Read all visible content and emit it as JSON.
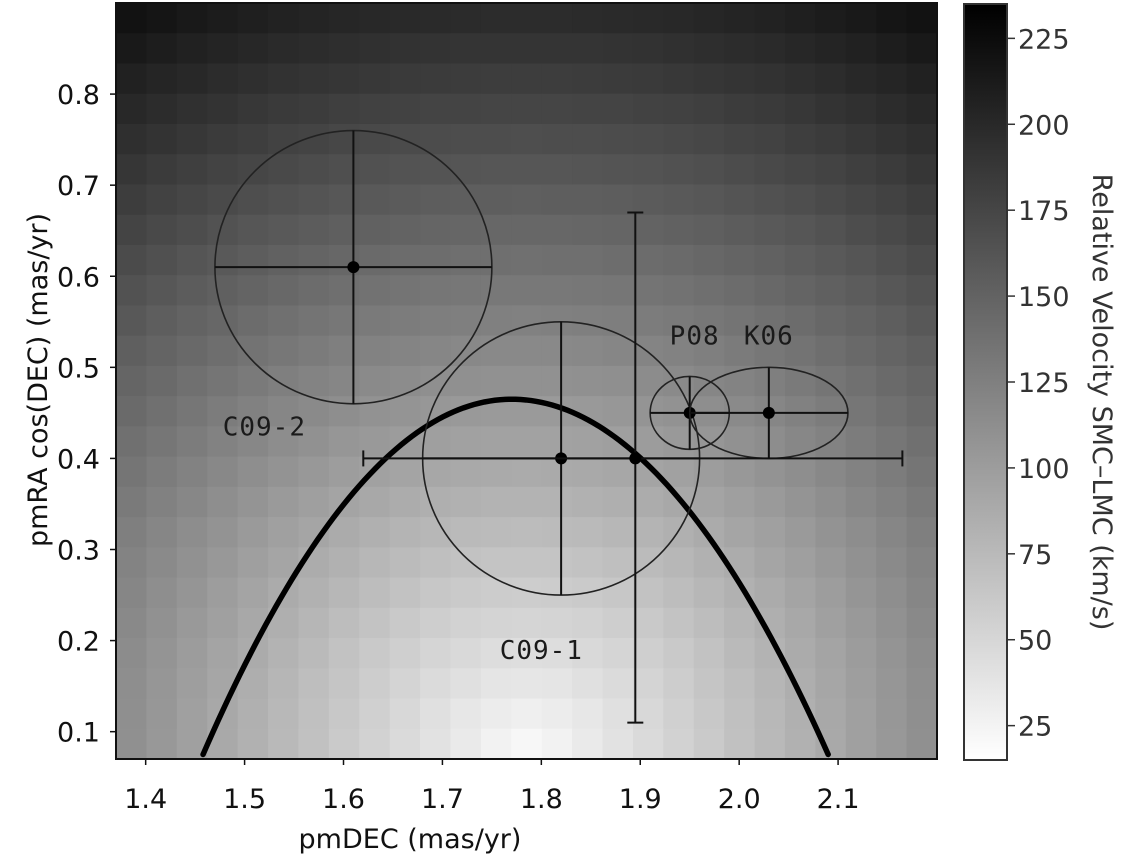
{
  "chart_data": {
    "type": "heatmap",
    "title": "",
    "xlabel": "pmDEC (mas/yr)",
    "ylabel": "pmRA cos(DEC) (mas/yr)",
    "xlim": [
      1.37,
      2.2
    ],
    "ylim": [
      0.07,
      0.9
    ],
    "x_ticks": [
      1.4,
      1.5,
      1.6,
      1.7,
      1.8,
      1.9,
      2.0,
      2.1
    ],
    "x_tick_labels": [
      "1.4",
      "1.5",
      "1.6",
      "1.7",
      "1.8",
      "1.9",
      "2.0",
      "2.1"
    ],
    "y_ticks": [
      0.1,
      0.2,
      0.3,
      0.4,
      0.5,
      0.6,
      0.7,
      0.8
    ],
    "y_tick_labels": [
      "0.1",
      "0.2",
      "0.3",
      "0.4",
      "0.5",
      "0.6",
      "0.7",
      "0.8"
    ],
    "grid": false,
    "heatmap": {
      "description_min_at": [
        1.785,
        0.07
      ],
      "min_value": 15,
      "max_value": 235,
      "colormap": "gray_reversed"
    },
    "colorbar": {
      "label": "Relative Velocity SMC–LMC (km/s)",
      "range": [
        15,
        235
      ],
      "ticks": [
        25,
        50,
        75,
        100,
        125,
        150,
        175,
        200,
        225
      ],
      "tick_labels": [
        "25",
        "50",
        "75",
        "100",
        "125",
        "150",
        "175",
        "200",
        "225"
      ]
    },
    "measurements": [
      {
        "name": "C09-2",
        "x": 1.61,
        "y": 0.61,
        "xerr": 0.14,
        "yerr": 0.15,
        "shape": "ellipse"
      },
      {
        "name": "C09-1",
        "x": 1.82,
        "y": 0.4,
        "xerr": 0.14,
        "yerr": 0.15,
        "shape": "ellipse"
      },
      {
        "name": "P08",
        "x": 1.95,
        "y": 0.45,
        "xerr": 0.04,
        "yerr": 0.04,
        "shape": "ellipse"
      },
      {
        "name": "K06",
        "x": 2.03,
        "y": 0.45,
        "xerr": 0.08,
        "yerr": 0.05,
        "shape": "ellipse"
      },
      {
        "name": "",
        "x": 1.895,
        "y": 0.4,
        "xerr_low": 0.275,
        "xerr_high": 0.27,
        "yerr_low": 0.29,
        "yerr_high": 0.27,
        "shape": "errorbar"
      }
    ],
    "annotations": [
      {
        "text": "C09-2",
        "x": 1.52,
        "y": 0.425
      },
      {
        "text": "C09-1",
        "x": 1.8,
        "y": 0.18
      },
      {
        "text": "P08",
        "x": 1.955,
        "y": 0.525
      },
      {
        "text": "K06",
        "x": 2.03,
        "y": 0.525
      }
    ],
    "curve": {
      "type": "parabola",
      "vertex": [
        1.77,
        0.465
      ],
      "x_range": [
        1.458,
        2.09
      ],
      "y_at_ends": 0.075
    }
  }
}
